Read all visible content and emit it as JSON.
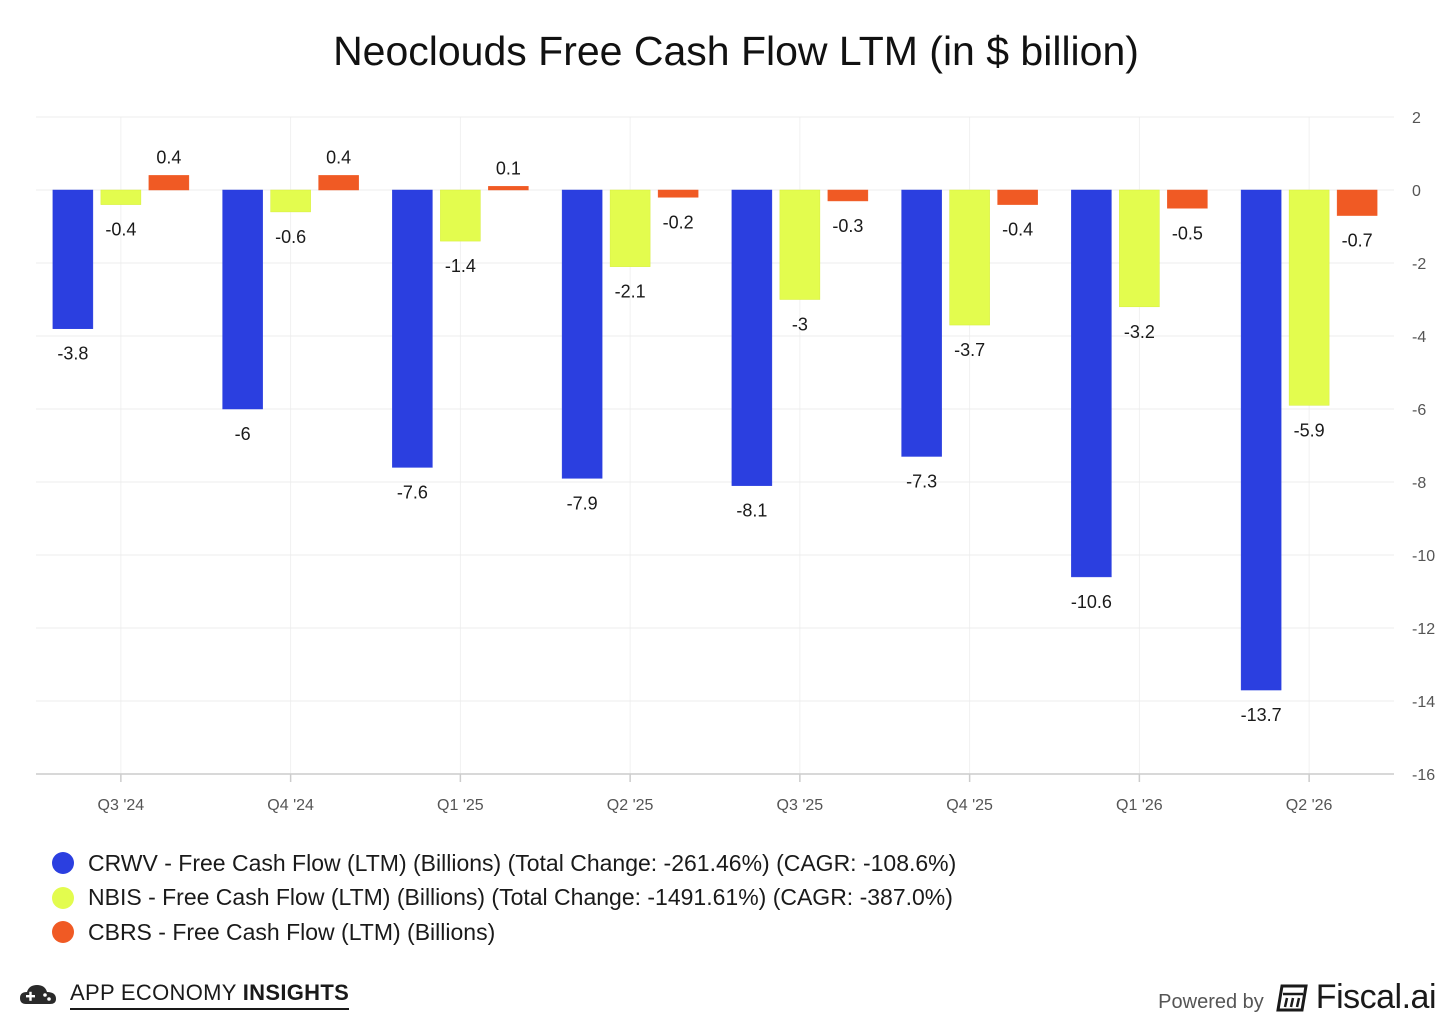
{
  "chart_data": {
    "type": "bar",
    "title": "Neoclouds Free Cash Flow LTM (in $ billion)",
    "categories": [
      "Q3 '24",
      "Q4 '24",
      "Q1 '25",
      "Q2 '25",
      "Q3 '25",
      "Q4 '25",
      "Q1 '26",
      "Q2 '26"
    ],
    "series": [
      {
        "name": "CRWV - Free Cash Flow (LTM) (Billions) (Total Change: -261.46%) (CAGR: -108.6%)",
        "color": "#2b3fe0",
        "values": [
          -3.8,
          -6,
          -7.6,
          -7.9,
          -8.1,
          -7.3,
          -10.6,
          -13.7
        ],
        "labels": [
          "-3.8",
          "-6",
          "-7.6",
          "-7.9",
          "-8.1",
          "-7.3",
          "-10.6",
          "-13.7"
        ]
      },
      {
        "name": "NBIS - Free Cash Flow (LTM) (Billions) (Total Change: -1491.61%) (CAGR: -387.0%)",
        "color": "#e3fc4e",
        "values": [
          -0.4,
          -0.6,
          -1.4,
          -2.1,
          -3,
          -3.7,
          -3.2,
          -5.9
        ],
        "labels": [
          "-0.4",
          "-0.6",
          "-1.4",
          "-2.1",
          "-3",
          "-3.7",
          "-3.2",
          "-5.9"
        ]
      },
      {
        "name": "CBRS - Free Cash Flow (LTM) (Billions)",
        "color": "#f05a24",
        "values": [
          0.4,
          0.4,
          0.1,
          -0.2,
          -0.3,
          -0.4,
          -0.5,
          -0.7
        ],
        "labels": [
          "0.4",
          "0.4",
          "0.1",
          "-0.2",
          "-0.3",
          "-0.4",
          "-0.5",
          "-0.7"
        ]
      }
    ],
    "ylim": [
      -16,
      2
    ],
    "yticks": [
      "2",
      "0",
      "-2",
      "-4",
      "-6",
      "-8",
      "-10",
      "-12",
      "-14",
      "-16"
    ],
    "ytick_values": [
      2,
      0,
      -2,
      -4,
      -6,
      -8,
      -10,
      -12,
      -14,
      -16
    ],
    "y_axis_side": "right",
    "grid": true,
    "legend_position": "bottom-left"
  },
  "footer": {
    "brand_left": "APP ECONOMY",
    "brand_left_bold": "INSIGHTS",
    "powered_by": "Powered by",
    "brand_right": "Fiscal.ai"
  },
  "icons": {
    "left": "cloud-gamepad-icon",
    "right": "fiscal-logo-icon"
  }
}
